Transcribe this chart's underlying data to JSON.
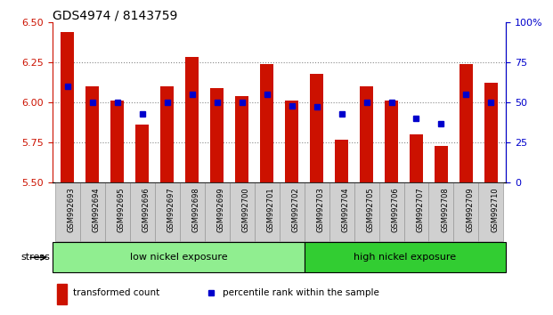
{
  "title": "GDS4974 / 8143759",
  "categories": [
    "GSM992693",
    "GSM992694",
    "GSM992695",
    "GSM992696",
    "GSM992697",
    "GSM992698",
    "GSM992699",
    "GSM992700",
    "GSM992701",
    "GSM992702",
    "GSM992703",
    "GSM992704",
    "GSM992705",
    "GSM992706",
    "GSM992707",
    "GSM992708",
    "GSM992709",
    "GSM992710"
  ],
  "red_values": [
    6.44,
    6.1,
    6.01,
    5.86,
    6.1,
    6.28,
    6.09,
    6.04,
    6.24,
    6.01,
    6.18,
    5.77,
    6.1,
    6.01,
    5.8,
    5.73,
    6.24,
    6.12
  ],
  "blue_values": [
    60,
    50,
    50,
    43,
    50,
    55,
    50,
    50,
    55,
    48,
    47,
    43,
    50,
    50,
    40,
    37,
    55,
    50
  ],
  "ylim_left": [
    5.5,
    6.5
  ],
  "ylim_right": [
    0,
    100
  ],
  "y_ticks_left": [
    5.5,
    5.75,
    6.0,
    6.25,
    6.5
  ],
  "y_ticks_right": [
    0,
    25,
    50,
    75,
    100
  ],
  "bar_color": "#CC1100",
  "dot_color": "#0000CC",
  "group1_label": "low nickel exposure",
  "group2_label": "high nickel exposure",
  "group1_color": "#90EE90",
  "group2_color": "#32CD32",
  "stress_label": "stress",
  "legend1": "transformed count",
  "legend2": "percentile rank within the sample",
  "divider_index": 10,
  "base_value": 5.5,
  "grid_color": "#888888",
  "ytick_color_left": "#CC1100",
  "ytick_color_right": "#0000CC",
  "xtick_box_color": "#d0d0d0",
  "xtick_box_edge": "#999999"
}
